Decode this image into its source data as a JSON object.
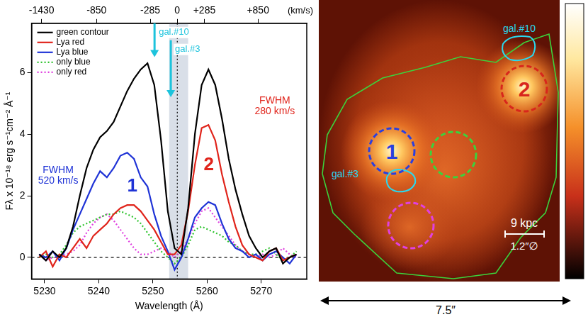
{
  "chart_data": {
    "type": "line",
    "x_label": "Wavelength (Å)",
    "y_label": "Fλ x 10⁻¹⁸ erg s⁻¹cm⁻² Å⁻¹",
    "x2_label": "(km/s)",
    "x": [
      5229,
      5230.25,
      5231.5,
      5232.75,
      5234,
      5235.25,
      5236.5,
      5237.75,
      5239,
      5240.25,
      5241.5,
      5242.75,
      5244,
      5245.25,
      5246.5,
      5247.75,
      5249,
      5250.25,
      5251.5,
      5252.75,
      5254,
      5255.25,
      5256.5,
      5257.75,
      5259,
      5260.25,
      5261.5,
      5262.75,
      5264,
      5265.25,
      5266.5,
      5267.75,
      5269,
      5270.25,
      5271.5,
      5272.75,
      5274,
      5275.25,
      5276.5
    ],
    "series": [
      {
        "name": "green contour",
        "color": "#000000",
        "line_style": "solid",
        "values": [
          0.1,
          -0.1,
          0.2,
          0.0,
          0.3,
          1.0,
          2.0,
          2.9,
          3.5,
          3.9,
          4.1,
          4.4,
          4.9,
          5.4,
          5.8,
          6.1,
          6.3,
          5.6,
          3.8,
          1.5,
          0.3,
          0.1,
          1.6,
          4.0,
          5.6,
          6.1,
          5.6,
          4.5,
          3.2,
          2.2,
          1.4,
          0.7,
          0.3,
          0.0,
          0.2,
          0.3,
          -0.2,
          0.0,
          0.1
        ]
      },
      {
        "name": "Lya red",
        "color": "#e0241b",
        "line_style": "solid",
        "values": [
          0.0,
          0.2,
          -0.3,
          0.1,
          0.0,
          0.3,
          0.6,
          0.3,
          0.7,
          0.9,
          1.1,
          1.4,
          1.6,
          1.7,
          1.7,
          1.5,
          1.2,
          0.9,
          0.5,
          0.1,
          0.1,
          0.4,
          1.5,
          3.0,
          4.2,
          4.3,
          3.8,
          2.7,
          1.8,
          1.0,
          0.4,
          0.1,
          0.0,
          -0.1,
          0.2,
          0.3,
          -0.1,
          0.0,
          0.1
        ]
      },
      {
        "name": "Lya blue",
        "color": "#1f33d6",
        "line_style": "solid",
        "values": [
          0.1,
          0.0,
          0.2,
          -0.1,
          0.3,
          0.9,
          1.4,
          1.9,
          2.4,
          2.8,
          2.6,
          2.9,
          3.3,
          3.4,
          3.2,
          2.6,
          2.3,
          1.4,
          0.7,
          0.2,
          -0.4,
          0.0,
          0.6,
          1.3,
          1.6,
          1.8,
          1.7,
          1.1,
          0.6,
          0.3,
          0.2,
          0.0,
          0.1,
          -0.1,
          0.1,
          0.2,
          0.0,
          -0.2,
          0.1
        ]
      },
      {
        "name": "only blue",
        "color": "#2fc42f",
        "line_style": "dotted",
        "values": [
          0.0,
          0.1,
          0.0,
          0.1,
          0.4,
          0.8,
          1.0,
          1.1,
          1.2,
          1.3,
          1.4,
          1.4,
          1.5,
          1.4,
          1.3,
          1.1,
          0.8,
          0.5,
          0.2,
          0.0,
          -0.2,
          0.0,
          0.4,
          0.9,
          1.0,
          0.9,
          0.8,
          0.7,
          0.5,
          0.4,
          0.2,
          0.1,
          0.1,
          0.2,
          0.3,
          0.1,
          -0.1,
          0.0,
          0.2
        ]
      },
      {
        "name": "only red",
        "color": "#e040e0",
        "line_style": "dotted",
        "values": [
          0.1,
          -0.1,
          0.0,
          0.0,
          0.1,
          0.2,
          0.4,
          0.8,
          1.1,
          1.3,
          1.4,
          1.2,
          0.9,
          0.6,
          0.3,
          0.1,
          0.1,
          0.2,
          0.3,
          0.2,
          0.0,
          0.2,
          0.6,
          1.1,
          1.5,
          1.6,
          1.3,
          1.0,
          0.7,
          0.4,
          0.2,
          0.1,
          0.0,
          0.1,
          0.0,
          0.1,
          0.3,
          0.1,
          0.0
        ]
      }
    ],
    "xlim": [
      5227.6,
      5278.4
    ],
    "xticks": [
      5230,
      5240,
      5250,
      5260,
      5270
    ],
    "ylim": [
      -0.7,
      7.6
    ],
    "yticks": [
      0,
      2,
      4,
      6
    ],
    "x2lim": [
      -1534.8,
      1363.6
    ],
    "x2ticks": [
      -1430,
      -850,
      -285,
      0,
      {
        "value": 285,
        "label": "+285"
      },
      {
        "value": 850,
        "label": "+850"
      }
    ],
    "grid": false,
    "legend": "upper left",
    "shaded_band": [
      5253,
      5256.5
    ],
    "reference_lines": {
      "y": 0,
      "x2": 0
    },
    "annotations": [
      {
        "text": [
          "FWHM",
          "520 km/s"
        ],
        "x": 5232.5,
        "y": 2.65,
        "color": "#1f33d6"
      },
      {
        "text": [
          "FWHM",
          "280 km/s"
        ],
        "x": 5272.5,
        "y": 4.9,
        "color": "#e0241b"
      }
    ],
    "region_labels": [
      {
        "text": "1",
        "x": 5246.2,
        "y": 2.3,
        "color": "#1f33d6"
      },
      {
        "text": "2",
        "x": 5260.3,
        "y": 3.0,
        "color": "#e0241b"
      }
    ],
    "arrows": [
      {
        "label": "gal.#10",
        "x": 5250.3,
        "y_from": 7.6,
        "y_to": 6.5,
        "label_y": 7.3,
        "color": "#1cc3dc"
      },
      {
        "label": "gal.#3",
        "x": 5253.3,
        "y_from": 7.05,
        "y_to": 5.2,
        "label_y": 6.75,
        "color": "#1cc3dc"
      }
    ]
  },
  "image_panel": {
    "contour_color": "#3cd23c",
    "galaxy_color": "#2ad8ee",
    "galaxies": [
      {
        "label": "gal.#10"
      },
      {
        "label": "gal.#3"
      }
    ],
    "regions": [
      {
        "label": "1",
        "color": "#2a3fe0"
      },
      {
        "label": "2",
        "color": "#d8261c"
      }
    ],
    "scale_bar": {
      "length_label": "9 kpc",
      "aperture_label": "1.2″∅"
    },
    "width_label": "7.5″"
  }
}
